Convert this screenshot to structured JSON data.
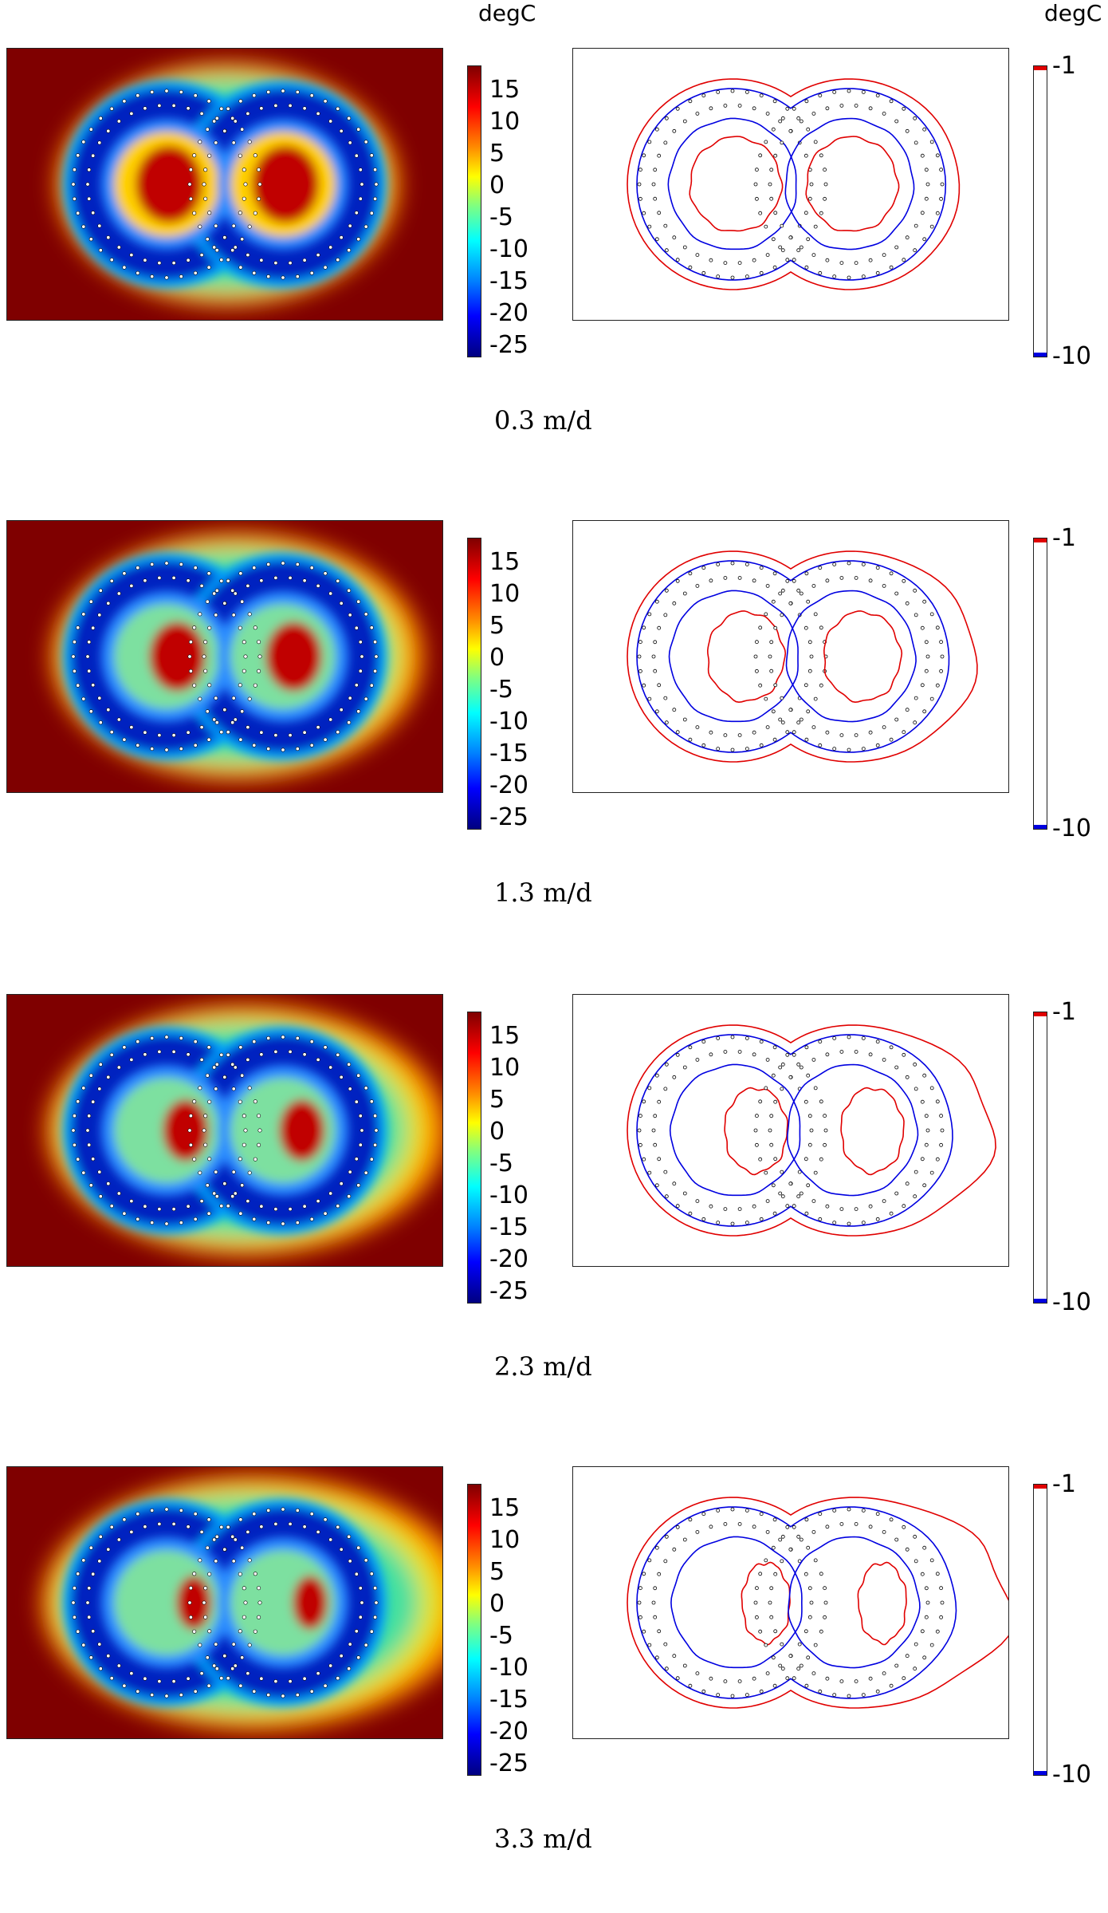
{
  "unit_left": "degC",
  "unit_right": "degC",
  "colorbar_ticks": [
    "15",
    "10",
    "5",
    "0",
    "-5",
    "-10",
    "-15",
    "-20",
    "-25"
  ],
  "contour_ticks": {
    "top": "-1",
    "bottom": "-10"
  },
  "colors": {
    "contour_warm": "#e00000",
    "contour_cold": "#0000e0"
  },
  "panels": [
    {
      "caption": "0.3 m/d",
      "velocity": 0.3
    },
    {
      "caption": "1.3 m/d",
      "velocity": 1.3
    },
    {
      "caption": "2.3 m/d",
      "velocity": 2.3
    },
    {
      "caption": "3.3 m/d",
      "velocity": 3.3
    }
  ]
}
